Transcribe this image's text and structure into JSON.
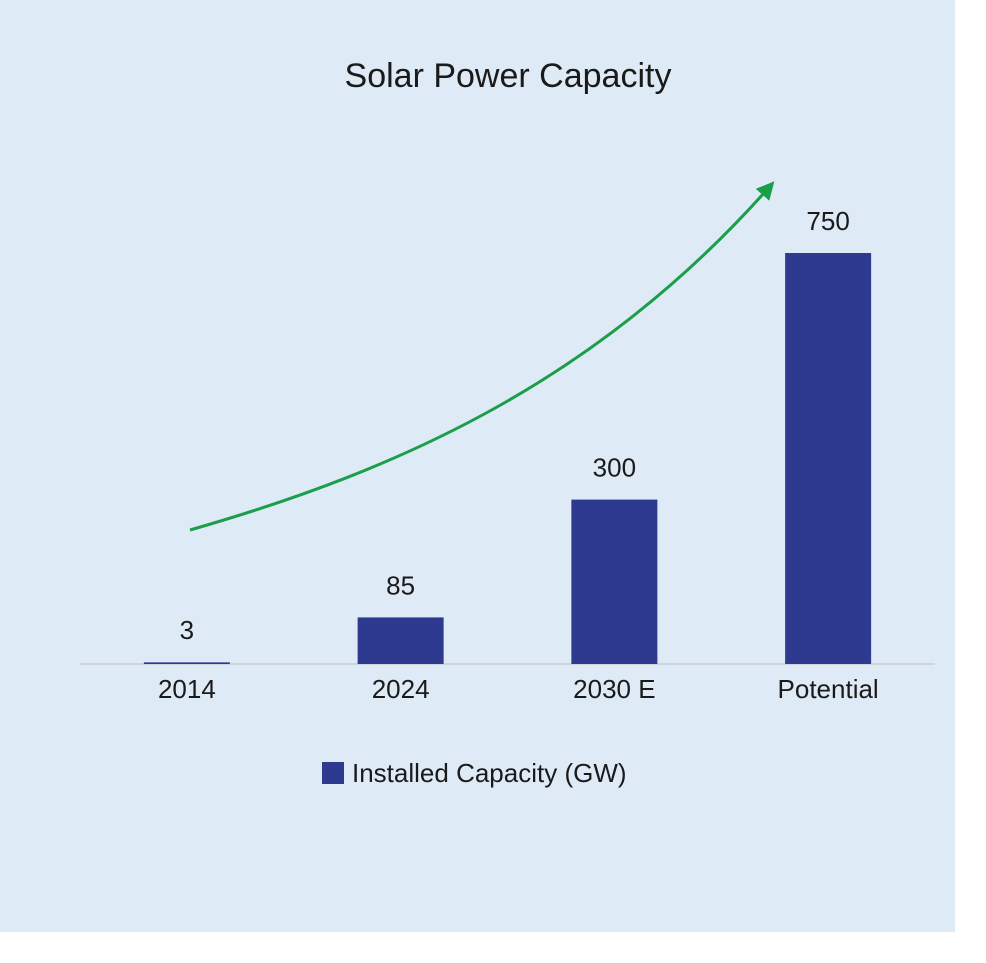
{
  "chart_data": {
    "type": "bar",
    "title": "Solar Power Capacity",
    "categories": [
      "2014",
      "2024",
      "2030 E",
      "Potential"
    ],
    "series": [
      {
        "name": "Installed Capacity (GW)",
        "color": "#2e3990",
        "values": [
          3,
          85,
          300,
          750
        ]
      }
    ]
  }
}
